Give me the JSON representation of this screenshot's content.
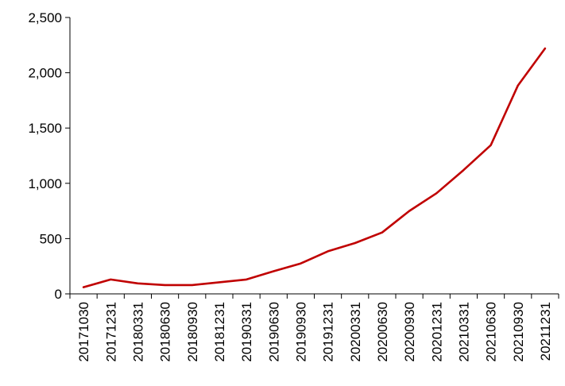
{
  "chart_data": {
    "type": "line",
    "title": "",
    "xlabel": "",
    "ylabel": "",
    "ylim": [
      0,
      2500
    ],
    "yticks": [
      0,
      500,
      1000,
      1500,
      2000,
      2500
    ],
    "ytick_labels": [
      "0",
      "500",
      "1,000",
      "1,500",
      "2,000",
      "2,500"
    ],
    "grid": false,
    "legend": "none",
    "categories": [
      "20171030",
      "20171231",
      "20180331",
      "20180630",
      "20180930",
      "20181231",
      "20190331",
      "20190630",
      "20190930",
      "20191231",
      "20200331",
      "20200630",
      "20200930",
      "20201231",
      "20210331",
      "20210630",
      "20210930",
      "20211231"
    ],
    "series": [
      {
        "color": "#c00000",
        "values": [
          60,
          130,
          95,
          80,
          80,
          105,
          130,
          205,
          275,
          385,
          460,
          555,
          750,
          910,
          1120,
          1345,
          1885,
          2220
        ]
      }
    ]
  }
}
